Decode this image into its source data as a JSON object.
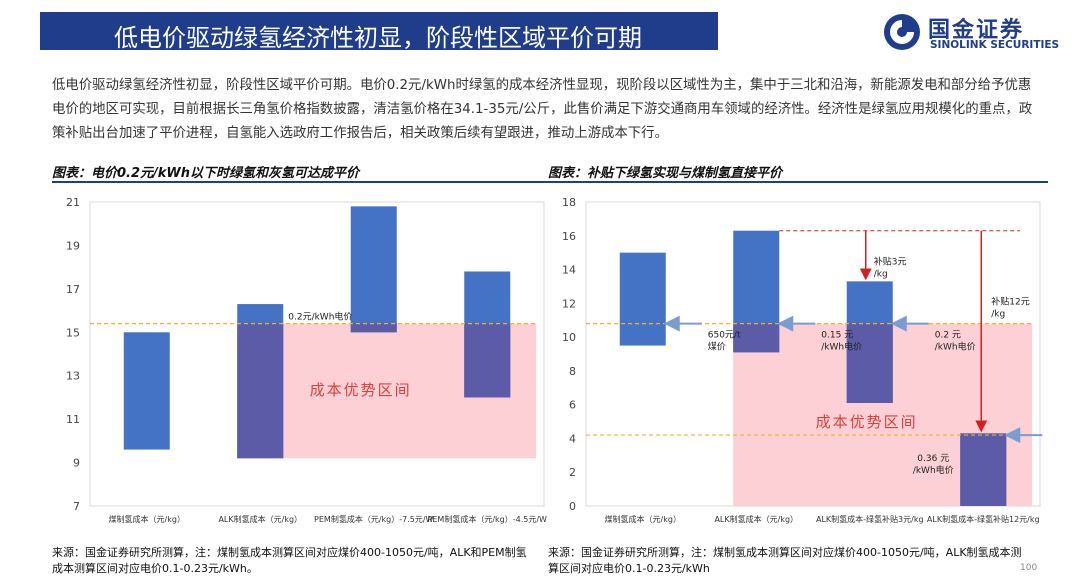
{
  "header": {
    "title": "低电价驱动绿氢经济性初显，阶段性区域平价可期",
    "logo_name": "国金证券",
    "logo_en": "SINOLINK SECURITIES"
  },
  "intro": "低电价驱动绿氢经济性初显，阶段性区域平价可期。电价0.2元/kWh时绿氢的成本经济性显现，现阶段以区域性为主，集中于三北和沿海，新能源发电和部分给予优惠电价的地区可实现，目前根据长三角氢价格指数披露，清洁氢价格在34.1-35元/公斤，此售价满足下游交通商用车领域的经济性。经济性是绿氢应用规模化的重点，政策补贴出台加速了平价进程，自氢能入选政府工作报告后，相关政策后续有望跟进，推动上游成本下行。",
  "colors": {
    "brand": "#1f3d8a",
    "bar": "#4472c4",
    "overlap": "#5b5ba8",
    "zone": "#fbc8cc",
    "dashed_line": "#f0b030",
    "arrow_blue": "#7a9cd0",
    "arrow_red": "#d02020"
  },
  "chart_data": [
    {
      "type": "bar",
      "subtype": "floating-range",
      "title": "图表：电价0.2元/kWh以下时绿氢和灰氢可达成平价",
      "categories": [
        "煤制氢成本（元/kg）",
        "ALK制氢成本（元/kg）",
        "PEM制氢成本（元/kg）-7.5元/W",
        "PEM制氢成本（元/kg）-4.5元/W"
      ],
      "ranges": [
        [
          9.6,
          15.0
        ],
        [
          9.2,
          16.3
        ],
        [
          15.0,
          20.8
        ],
        [
          12.0,
          17.8
        ]
      ],
      "ylim": [
        7,
        21
      ],
      "yticks": [
        7,
        9,
        11,
        13,
        15,
        17,
        19,
        21
      ],
      "reference_line": {
        "value": 15.4,
        "label": "0.2元/kWh电价"
      },
      "zone": {
        "from": 9.2,
        "to": 15.4,
        "start_category": 1,
        "label": "成本优势区间"
      },
      "source": "来源：国金证券研究所测算，注：煤制氢成本测算区间对应煤价400-1050元/吨，ALK和PEM制氢成本测算区间对应电价0.1-0.23元/kWh。"
    },
    {
      "type": "bar",
      "subtype": "floating-range",
      "title": "图表：补贴下绿氢实现与煤制氢直接平价",
      "categories": [
        "煤制氢成本（元/kg）",
        "ALK制氢成本（元/kg）",
        "ALK制氢成本-绿氢补贴3元/kg",
        "ALK制氢成本-绿氢补贴12元/kg"
      ],
      "ranges": [
        [
          9.5,
          15.0
        ],
        [
          9.1,
          16.3
        ],
        [
          6.1,
          13.3
        ],
        [
          0,
          4.3
        ]
      ],
      "ylim": [
        0,
        18
      ],
      "yticks": [
        0,
        2,
        4,
        6,
        8,
        10,
        12,
        14,
        16,
        18
      ],
      "zone": {
        "from": 0,
        "to": 10.8,
        "start_category": 1,
        "label": "成本优势区间"
      },
      "reference_lines": [
        {
          "value": 10.8,
          "label": "650元/t煤价",
          "arrow_to_category": 0
        },
        {
          "value": 10.8,
          "label": "0.15 元/kWh电价",
          "arrow_to_category": 1
        },
        {
          "value": 10.8,
          "label": "0.2 元/kWh电价",
          "arrow_to_category": 2
        },
        {
          "value": 4.2,
          "label": "0.36 元/kWh电价",
          "arrow_to_category": 3
        }
      ],
      "subsidy_line": {
        "value": 16.3
      },
      "subsidy_annotations": [
        {
          "label": "补贴3元/kg",
          "category": 2,
          "from": 16.3,
          "to": 13.3
        },
        {
          "label": "补贴12元/kg",
          "category": 3,
          "from": 16.3,
          "to": 4.3
        }
      ],
      "source": "来源：国金证券研究所测算，注：煤制氢成本测算区间对应煤价400-1050元/吨，ALK制氢成本测算区间对应电价0.1-0.23元/kWh"
    }
  ],
  "page_number": "100"
}
